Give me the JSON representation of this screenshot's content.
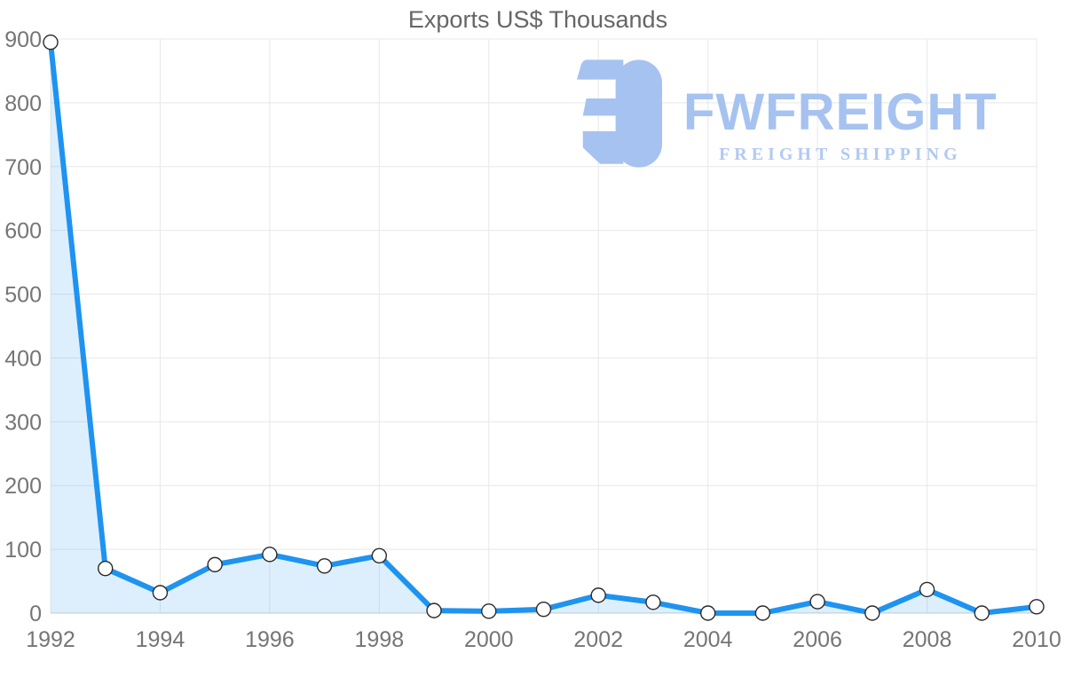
{
  "chart_data": {
    "type": "area",
    "title": "Exports US$ Thousands",
    "x": [
      1992,
      1993,
      1994,
      1995,
      1996,
      1997,
      1998,
      1999,
      2000,
      2001,
      2002,
      2003,
      2004,
      2005,
      2006,
      2007,
      2008,
      2009,
      2010
    ],
    "values": [
      895,
      70,
      32,
      76,
      92,
      74,
      90,
      4,
      3,
      6,
      28,
      17,
      0,
      0,
      18,
      0,
      37,
      0,
      10
    ],
    "x_tick_labels": [
      "1992",
      "1994",
      "1996",
      "1998",
      "2000",
      "2002",
      "2004",
      "2006",
      "2008",
      "2010"
    ],
    "y_ticks": [
      0,
      100,
      200,
      300,
      400,
      500,
      600,
      700,
      800,
      900
    ],
    "xlabel": "",
    "ylabel": "",
    "ylim": [
      0,
      900
    ],
    "grid": true,
    "legend_position": "none",
    "marker_shape": "circle",
    "colors": {
      "line": "#1e93f0",
      "area_fill": "rgba(30,147,240,0.15)",
      "marker_fill": "#ffffff",
      "marker_stroke": "#2a2a2a",
      "grid": "#e8e8e8",
      "axis": "#cccccc",
      "tick_label": "#757575",
      "title": "#666666"
    }
  },
  "logo": {
    "name": "FWFREIGHT",
    "tagline": "FREIGHT SHIPPING",
    "brand_color": "#a6c2f0",
    "tagline_color": "#b2c9f1"
  }
}
